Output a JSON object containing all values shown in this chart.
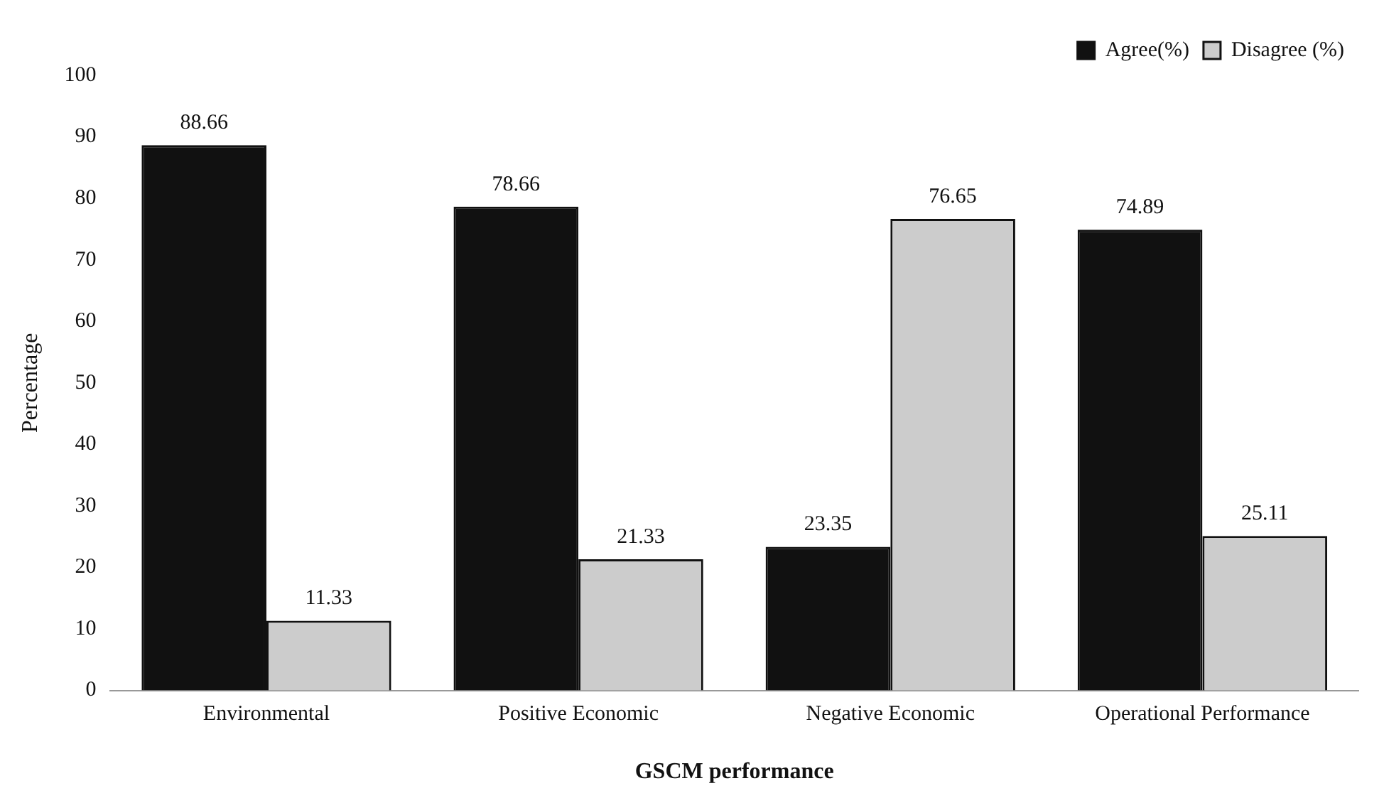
{
  "chart_data": {
    "type": "bar",
    "xlabel": "GSCM performance",
    "ylabel": "Percentage",
    "categories": [
      "Environmental",
      "Positive Economic",
      "Negative Economic",
      "Operational Performance"
    ],
    "series": [
      {
        "name": "Agree(%)",
        "color": "#111111",
        "values": [
          88.66,
          78.66,
          23.35,
          74.89
        ]
      },
      {
        "name": "Disagree (%)",
        "color": "#cccccc",
        "values": [
          11.33,
          21.33,
          76.65,
          25.11
        ]
      }
    ],
    "ylim": [
      0,
      100
    ],
    "yticks": [
      0,
      10,
      20,
      30,
      40,
      50,
      60,
      70,
      80,
      90,
      100
    ],
    "grid": false,
    "legend": "top right",
    "data_labels": true
  }
}
